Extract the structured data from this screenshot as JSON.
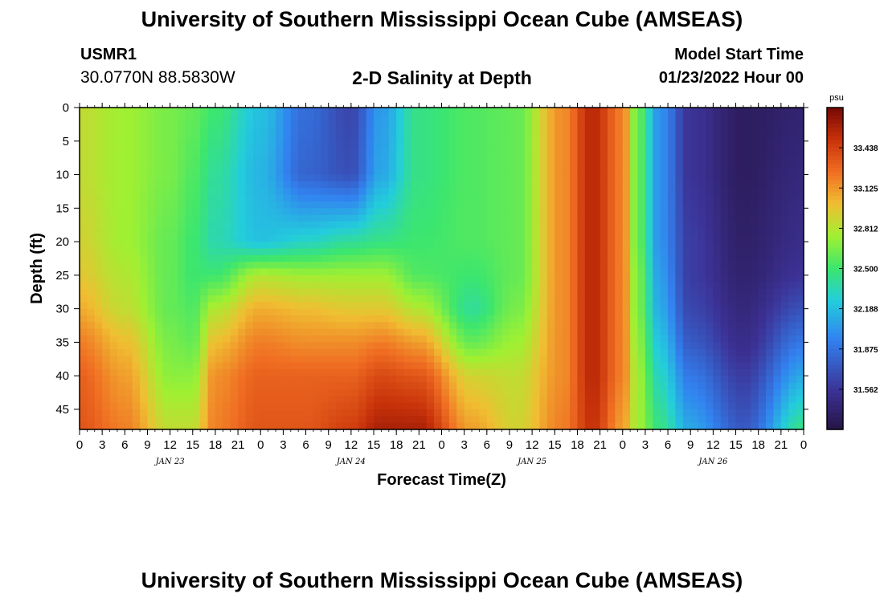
{
  "header": {
    "title": "University of Southern Mississippi Ocean Cube (AMSEAS)",
    "station_id": "USMR1",
    "station_coords": "30.0770N  88.5830W",
    "chart_title": "2-D Salinity at Depth",
    "run_label": "Model Start Time",
    "run_value": "01/23/2022 Hour 00"
  },
  "footer": {
    "title": "University of Southern Mississippi Ocean Cube (AMSEAS)"
  },
  "chart_data": {
    "type": "heatmap",
    "title": "2-D Salinity at Depth",
    "xlabel": "Forecast Time(Z)",
    "ylabel": "Depth (ft)",
    "x_range_hours": [
      0,
      96
    ],
    "y_range_ft": [
      0,
      48
    ],
    "x_tick_labels": [
      "0",
      "3",
      "6",
      "9",
      "12",
      "15",
      "18",
      "21",
      "0",
      "3",
      "6",
      "9",
      "12",
      "15",
      "18",
      "21",
      "0",
      "3",
      "6",
      "9",
      "12",
      "15",
      "18",
      "21",
      "0",
      "3",
      "6",
      "9",
      "12",
      "15",
      "18",
      "21",
      "0"
    ],
    "y_tick_labels": [
      "0",
      "5",
      "10",
      "15",
      "20",
      "25",
      "30",
      "35",
      "40",
      "45"
    ],
    "y_tick_values": [
      0,
      5,
      10,
      15,
      20,
      25,
      30,
      35,
      40,
      45
    ],
    "day_labels": [
      {
        "text": "JAN 23",
        "hour": 12
      },
      {
        "text": "JAN 24",
        "hour": 36
      },
      {
        "text": "JAN 25",
        "hour": 60
      },
      {
        "text": "JAN 26",
        "hour": 84
      }
    ],
    "colorbar": {
      "unit": "psu",
      "range": [
        31.25,
        33.75
      ],
      "tick_labels": [
        "33.438",
        "33.125",
        "32.812",
        "32.500",
        "32.188",
        "31.875",
        "31.562"
      ],
      "tick_values": [
        33.438,
        33.125,
        32.812,
        32.5,
        32.188,
        31.875,
        31.562
      ]
    },
    "salinity_surface_psu": [
      {
        "hour": 0,
        "depths": [
          0,
          10,
          20,
          25,
          30,
          35,
          40,
          48
        ],
        "psu": [
          32.85,
          32.85,
          32.9,
          32.95,
          33.05,
          33.2,
          33.3,
          33.35
        ]
      },
      {
        "hour": 6,
        "depths": [
          0,
          10,
          20,
          25,
          30,
          35,
          40,
          48
        ],
        "psu": [
          32.75,
          32.75,
          32.75,
          32.8,
          32.85,
          33.0,
          33.1,
          33.2
        ]
      },
      {
        "hour": 12,
        "depths": [
          0,
          10,
          20,
          25,
          30,
          35,
          40,
          48
        ],
        "psu": [
          32.65,
          32.65,
          32.6,
          32.6,
          32.6,
          32.65,
          32.7,
          32.85
        ]
      },
      {
        "hour": 15,
        "depths": [
          0,
          10,
          20,
          25,
          30,
          35,
          40,
          48
        ],
        "psu": [
          32.6,
          32.55,
          32.5,
          32.5,
          32.55,
          32.6,
          32.7,
          32.85
        ]
      },
      {
        "hour": 18,
        "depths": [
          0,
          10,
          20,
          25,
          30,
          35,
          40,
          48
        ],
        "psu": [
          32.5,
          32.4,
          32.35,
          32.5,
          32.8,
          33.0,
          33.15,
          33.2
        ]
      },
      {
        "hour": 24,
        "depths": [
          0,
          10,
          20,
          25,
          30,
          35,
          40,
          48
        ],
        "psu": [
          32.2,
          32.15,
          32.2,
          32.8,
          33.05,
          33.2,
          33.3,
          33.35
        ]
      },
      {
        "hour": 30,
        "depths": [
          0,
          10,
          20,
          25,
          30,
          35,
          40,
          48
        ],
        "psu": [
          31.85,
          31.8,
          32.3,
          32.75,
          33.0,
          33.15,
          33.3,
          33.35
        ]
      },
      {
        "hour": 36,
        "depths": [
          0,
          10,
          20,
          25,
          30,
          35,
          40,
          48
        ],
        "psu": [
          31.65,
          31.7,
          32.4,
          32.75,
          32.95,
          33.15,
          33.3,
          33.45
        ]
      },
      {
        "hour": 40,
        "depths": [
          0,
          10,
          20,
          25,
          30,
          35,
          40,
          48
        ],
        "psu": [
          32.05,
          32.1,
          32.45,
          32.75,
          32.95,
          33.2,
          33.4,
          33.6
        ]
      },
      {
        "hour": 45,
        "depths": [
          0,
          10,
          20,
          25,
          30,
          35,
          40,
          48
        ],
        "psu": [
          32.45,
          32.45,
          32.5,
          32.55,
          32.8,
          33.1,
          33.35,
          33.6
        ]
      },
      {
        "hour": 52,
        "depths": [
          0,
          10,
          20,
          25,
          30,
          35,
          40,
          48
        ],
        "psu": [
          32.55,
          32.55,
          32.55,
          32.5,
          32.4,
          32.6,
          32.9,
          33.1
        ]
      },
      {
        "hour": 58,
        "depths": [
          0,
          10,
          20,
          25,
          30,
          35,
          40,
          48
        ],
        "psu": [
          32.6,
          32.6,
          32.6,
          32.6,
          32.65,
          32.75,
          32.85,
          32.9
        ]
      },
      {
        "hour": 64,
        "depths": [
          0,
          10,
          20,
          25,
          30,
          35,
          40,
          48
        ],
        "psu": [
          33.15,
          33.15,
          33.15,
          33.15,
          33.15,
          33.15,
          33.15,
          33.2
        ]
      },
      {
        "hour": 68,
        "depths": [
          0,
          10,
          20,
          25,
          30,
          35,
          40,
          48
        ],
        "psu": [
          33.55,
          33.55,
          33.55,
          33.55,
          33.55,
          33.55,
          33.55,
          33.5
        ]
      },
      {
        "hour": 72,
        "depths": [
          0,
          10,
          20,
          25,
          30,
          35,
          40,
          48
        ],
        "psu": [
          33.2,
          33.2,
          33.2,
          33.2,
          33.2,
          33.2,
          33.2,
          33.1
        ]
      },
      {
        "hour": 74,
        "depths": [
          0,
          10,
          20,
          25,
          30,
          35,
          40,
          48
        ],
        "psu": [
          32.6,
          32.6,
          32.6,
          32.65,
          32.65,
          32.7,
          32.75,
          32.75
        ]
      },
      {
        "hour": 77,
        "depths": [
          0,
          10,
          20,
          25,
          30,
          35,
          40,
          48
        ],
        "psu": [
          32.0,
          32.0,
          32.0,
          32.05,
          32.1,
          32.2,
          32.3,
          32.45
        ]
      },
      {
        "hour": 81,
        "depths": [
          0,
          10,
          20,
          25,
          30,
          35,
          40,
          48
        ],
        "psu": [
          31.55,
          31.55,
          31.6,
          31.6,
          31.65,
          31.75,
          31.9,
          32.1
        ]
      },
      {
        "hour": 88,
        "depths": [
          0,
          10,
          20,
          25,
          30,
          35,
          40,
          48
        ],
        "psu": [
          31.35,
          31.35,
          31.38,
          31.4,
          31.45,
          31.5,
          31.6,
          31.75
        ]
      },
      {
        "hour": 96,
        "depths": [
          0,
          10,
          20,
          25,
          30,
          35,
          40,
          48
        ],
        "psu": [
          31.4,
          31.45,
          31.5,
          31.55,
          31.7,
          31.9,
          32.1,
          32.45
        ]
      }
    ]
  }
}
